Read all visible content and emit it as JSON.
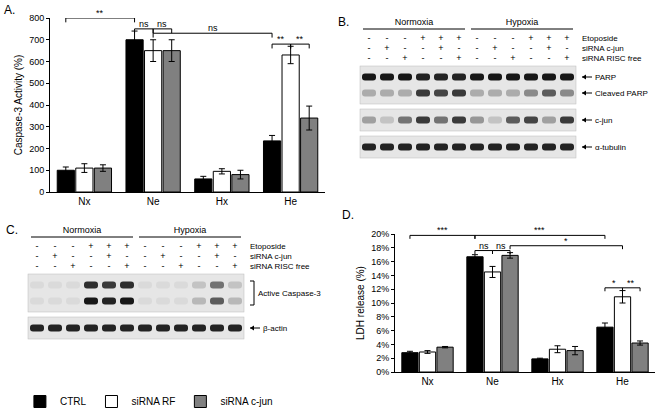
{
  "chart_data": [
    {
      "type": "bar",
      "label": "A.",
      "y_label": "Caspase-3 Activity (%)",
      "categories": [
        "Nx",
        "Ne",
        "Hx",
        "He"
      ],
      "ylim": [
        0,
        800
      ],
      "yticks": [
        0,
        100,
        200,
        300,
        400,
        500,
        600,
        700,
        800
      ],
      "grid": false,
      "legend": "bottom",
      "series": [
        {
          "name": "CTRL",
          "color": "#000000",
          "values": [
            100,
            700,
            60,
            235
          ],
          "errors": [
            15,
            40,
            12,
            25
          ]
        },
        {
          "name": "siRNA RF",
          "color": "#ffffff",
          "values": [
            110,
            650,
            95,
            630
          ],
          "errors": [
            20,
            50,
            12,
            40
          ]
        },
        {
          "name": "siRNA c-jun",
          "color": "#808080",
          "values": [
            110,
            650,
            80,
            340
          ],
          "errors": [
            15,
            50,
            20,
            55
          ]
        }
      ],
      "significance": [
        {
          "text": "**",
          "from": [
            0,
            0
          ],
          "to": [
            1,
            0
          ],
          "y": 800
        },
        {
          "text": "ns",
          "from": [
            1,
            0
          ],
          "to": [
            1,
            1
          ],
          "y": 750
        },
        {
          "text": "ns",
          "from": [
            1,
            1
          ],
          "to": [
            1,
            2
          ],
          "y": 750
        },
        {
          "text": "ns",
          "from": [
            1,
            1
          ],
          "to": [
            3,
            0
          ],
          "y": 730
        },
        {
          "text": "**",
          "from": [
            3,
            0
          ],
          "to": [
            3,
            1
          ],
          "y": 680
        },
        {
          "text": "**",
          "from": [
            3,
            1
          ],
          "to": [
            3,
            2
          ],
          "y": 680
        }
      ]
    },
    {
      "type": "bar",
      "label": "D.",
      "y_label": "LDH release (%)",
      "categories": [
        "Nx",
        "Ne",
        "Hx",
        "He"
      ],
      "ylim": [
        0,
        20
      ],
      "yticks": [
        {
          "value": 0,
          "label": "0%"
        },
        {
          "value": 2,
          "label": "2%"
        },
        {
          "value": 4,
          "label": "4%"
        },
        {
          "value": 6,
          "label": "6%"
        },
        {
          "value": 8,
          "label": "8%"
        },
        {
          "value": 10,
          "label": "10%"
        },
        {
          "value": 12,
          "label": "12%"
        },
        {
          "value": 14,
          "label": "14%"
        },
        {
          "value": 16,
          "label": "16%"
        },
        {
          "value": 18,
          "label": "18%"
        },
        {
          "value": 20,
          "label": "20%"
        }
      ],
      "grid": false,
      "series": [
        {
          "name": "CTRL",
          "color": "#000000",
          "values": [
            2.8,
            16.7,
            1.9,
            6.5
          ],
          "errors": [
            0.2,
            0.3,
            0.1,
            0.6
          ]
        },
        {
          "name": "siRNA RF",
          "color": "#ffffff",
          "values": [
            2.9,
            14.5,
            3.3,
            10.9
          ],
          "errors": [
            0.2,
            0.8,
            0.5,
            0.9
          ]
        },
        {
          "name": "siRNA c-jun",
          "color": "#808080",
          "values": [
            3.6,
            16.9,
            3.1,
            4.2
          ],
          "errors": [
            0.1,
            0.4,
            0.6,
            0.3
          ]
        }
      ],
      "significance": [
        {
          "text": "***",
          "from": [
            0,
            0
          ],
          "to": [
            1,
            0
          ],
          "y": 19.8
        },
        {
          "text": "***",
          "from": [
            1,
            0
          ],
          "to": [
            3,
            0
          ],
          "y": 19.8
        },
        {
          "text": "ns",
          "from": [
            1,
            0
          ],
          "to": [
            1,
            1
          ],
          "y": 17.6
        },
        {
          "text": "ns",
          "from": [
            1,
            1
          ],
          "to": [
            1,
            2
          ],
          "y": 17.6
        },
        {
          "text": "*",
          "from": [
            1,
            2
          ],
          "to": [
            3,
            1
          ],
          "y": 18.3
        },
        {
          "text": "*",
          "from": [
            3,
            0
          ],
          "to": [
            3,
            1
          ],
          "y": 12.2
        },
        {
          "text": "**",
          "from": [
            3,
            1
          ],
          "to": [
            3,
            2
          ],
          "y": 12.2
        }
      ]
    }
  ],
  "blots": [
    {
      "label": "B.",
      "groups": [
        "Normoxia",
        "Hypoxia"
      ],
      "treatments": [
        {
          "name": "Etoposide",
          "marks": [
            "-",
            "-",
            "-",
            "+",
            "+",
            "+",
            "-",
            "-",
            "-",
            "+",
            "+",
            "+"
          ]
        },
        {
          "name": "siRNA c-jun",
          "marks": [
            "-",
            "+",
            "-",
            "-",
            "+",
            "-",
            "-",
            "+",
            "-",
            "-",
            "+",
            "-"
          ]
        },
        {
          "name": "siRNA RISC free",
          "marks": [
            "-",
            "-",
            "+",
            "-",
            "-",
            "+",
            "-",
            "-",
            "+",
            "-",
            "-",
            "+"
          ]
        }
      ],
      "membranes": [
        {
          "bands": [
            {
              "label": "PARP",
              "intensity": [
                0.9,
                0.9,
                0.9,
                0.85,
                0.85,
                0.85,
                0.9,
                0.9,
                0.9,
                0.9,
                0.9,
                0.9
              ]
            },
            {
              "label": "Cleaved PARP",
              "intensity": [
                0.25,
                0.25,
                0.25,
                0.75,
                0.7,
                0.75,
                0.25,
                0.25,
                0.25,
                0.4,
                0.6,
                0.4
              ]
            }
          ]
        },
        {
          "bands": [
            {
              "label": "c-jun",
              "intensity": [
                0.3,
                0.15,
                0.5,
                0.75,
                0.5,
                0.75,
                0.35,
                0.15,
                0.6,
                0.7,
                0.3,
                0.75
              ]
            }
          ]
        },
        {
          "bands": [
            {
              "label": "α-tubulin",
              "intensity": [
                0.85,
                0.85,
                0.85,
                0.85,
                0.85,
                0.85,
                0.85,
                0.85,
                0.85,
                0.85,
                0.85,
                0.85
              ]
            }
          ]
        }
      ]
    },
    {
      "label": "C.",
      "groups": [
        "Normoxia",
        "Hypoxia"
      ],
      "treatments": [
        {
          "name": "Etoposide",
          "marks": [
            "-",
            "-",
            "-",
            "+",
            "+",
            "+",
            "-",
            "-",
            "-",
            "+",
            "+",
            "+"
          ]
        },
        {
          "name": "siRNA c-jun",
          "marks": [
            "-",
            "+",
            "-",
            "-",
            "+",
            "-",
            "-",
            "+",
            "-",
            "-",
            "+",
            "-"
          ]
        },
        {
          "name": "siRNA RISC free",
          "marks": [
            "-",
            "-",
            "+",
            "-",
            "-",
            "+",
            "-",
            "-",
            "+",
            "-",
            "-",
            "+"
          ]
        }
      ],
      "membranes": [
        {
          "label": "Active Caspase-3",
          "bands": [
            {
              "intensity": [
                0.05,
                0.05,
                0.05,
                0.8,
                0.75,
                0.8,
                0.05,
                0.05,
                0.05,
                0.15,
                0.5,
                0.15
              ]
            },
            {
              "intensity": [
                0.05,
                0.05,
                0.05,
                0.9,
                0.85,
                0.9,
                0.05,
                0.05,
                0.05,
                0.2,
                0.6,
                0.2
              ]
            }
          ]
        },
        {
          "bands": [
            {
              "label": "β-actin",
              "intensity": [
                0.85,
                0.85,
                0.85,
                0.85,
                0.85,
                0.85,
                0.85,
                0.85,
                0.85,
                0.85,
                0.85,
                0.85
              ]
            }
          ]
        }
      ]
    }
  ]
}
